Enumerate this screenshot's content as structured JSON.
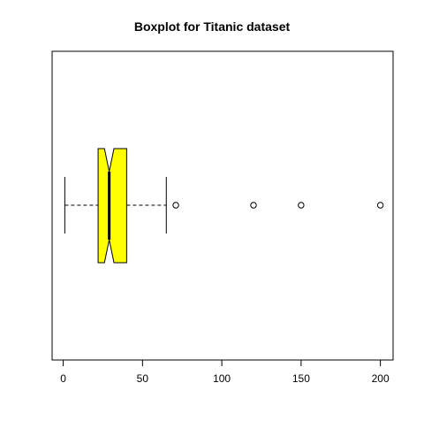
{
  "chart_data": {
    "type": "boxplot",
    "orientation": "horizontal",
    "title": "Boxplot for Titanic dataset",
    "xlabel": "",
    "ylabel": "",
    "xlim": [
      -7,
      208
    ],
    "x_ticks": [
      0,
      50,
      100,
      150,
      200
    ],
    "grid": false,
    "notched": true,
    "box_color": "#ffff00",
    "stats": {
      "whisker_low": 1,
      "q1": 22,
      "notch_low": 26,
      "median": 29,
      "notch_high": 32,
      "q3": 40,
      "whisker_high": 65
    },
    "outliers": [
      71,
      120,
      150,
      200
    ]
  }
}
